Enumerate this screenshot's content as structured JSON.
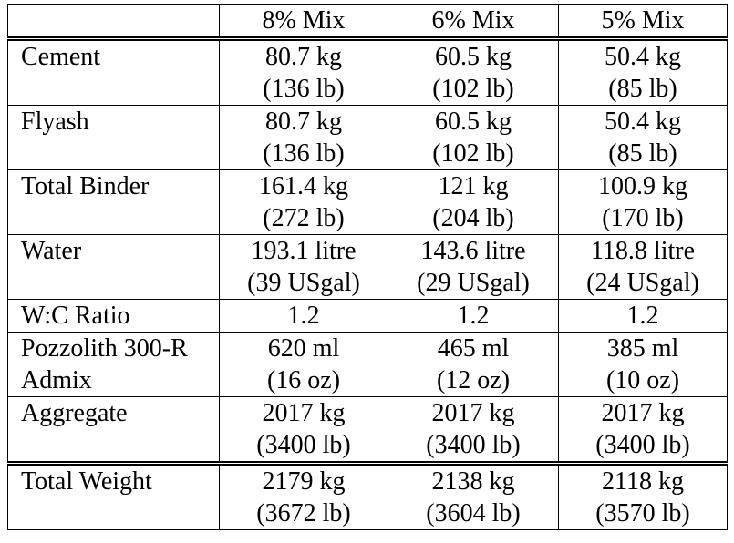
{
  "table": {
    "header": [
      "8% Mix",
      "6% Mix",
      "5% Mix"
    ],
    "rows": [
      {
        "label": [
          "Cement"
        ],
        "values": [
          [
            "80.7 kg",
            "(136 lb)"
          ],
          [
            "60.5 kg",
            "(102 lb)"
          ],
          [
            "50.4 kg",
            "(85 lb)"
          ]
        ]
      },
      {
        "label": [
          "Flyash"
        ],
        "values": [
          [
            "80.7 kg",
            "(136 lb)"
          ],
          [
            "60.5 kg",
            "(102 lb)"
          ],
          [
            "50.4 kg",
            "(85 lb)"
          ]
        ]
      },
      {
        "label": [
          "Total Binder"
        ],
        "values": [
          [
            "161.4 kg",
            "(272 lb)"
          ],
          [
            "121 kg",
            "(204 lb)"
          ],
          [
            "100.9 kg",
            "(170 lb)"
          ]
        ]
      },
      {
        "label": [
          "Water"
        ],
        "values": [
          [
            "193.1 litre",
            "(39 USgal)"
          ],
          [
            "143.6 litre",
            "(29 USgal)"
          ],
          [
            "118.8 litre",
            "(24 USgal)"
          ]
        ]
      },
      {
        "label": [
          "W:C Ratio"
        ],
        "values": [
          [
            "1.2"
          ],
          [
            "1.2"
          ],
          [
            "1.2"
          ]
        ]
      },
      {
        "label": [
          "Pozzolith 300-R",
          "Admix"
        ],
        "values": [
          [
            "620 ml",
            "(16 oz)"
          ],
          [
            "465 ml",
            "(12 oz)"
          ],
          [
            "385 ml",
            "(10 oz)"
          ]
        ]
      },
      {
        "label": [
          "Aggregate"
        ],
        "values": [
          [
            "2017 kg",
            "(3400 lb)"
          ],
          [
            "2017 kg",
            "(3400 lb)"
          ],
          [
            "2017 kg",
            "(3400 lb)"
          ]
        ]
      },
      {
        "label": [
          "Total Weight"
        ],
        "values": [
          [
            "2179 kg",
            "(3672 lb)"
          ],
          [
            "2138 kg",
            "(3604 lb)"
          ],
          [
            "2118 kg",
            "(3570 lb)"
          ]
        ]
      }
    ]
  }
}
